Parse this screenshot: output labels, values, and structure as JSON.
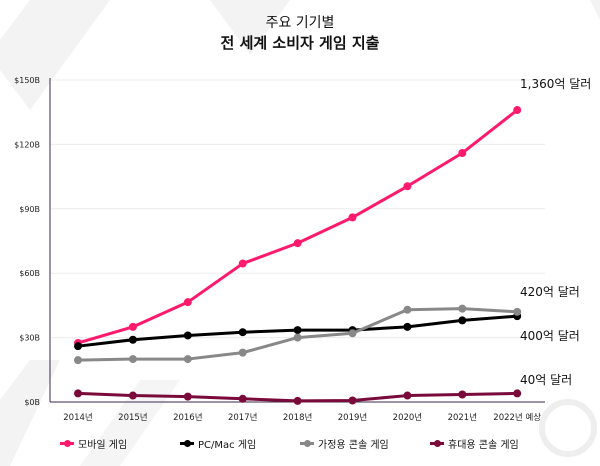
{
  "title_line1": "주요 기기별",
  "title_line2": "전 세계 소비자 게임 지출",
  "chart_data": {
    "type": "line",
    "title": "주요 기기별 전 세계 소비자 게임 지출",
    "categories": [
      "2014년",
      "2015년",
      "2016년",
      "2017년",
      "2018년",
      "2019년",
      "2020년",
      "2021년",
      "2022년 예상"
    ],
    "ylim": [
      0,
      150
    ],
    "yticks": [
      0,
      30,
      60,
      90,
      120,
      150
    ],
    "ytick_labels": [
      "$0B",
      "$30B",
      "$60B",
      "$90B",
      "$120B",
      "$150B"
    ],
    "grid": true,
    "legend_position": "bottom",
    "series": [
      {
        "name": "모바일 게임",
        "color": "#ff1a6e",
        "values": [
          27.5,
          35,
          46.5,
          64.5,
          74,
          86,
          100.5,
          116,
          136
        ]
      },
      {
        "name": "PC/Mac 게임",
        "color": "#000000",
        "values": [
          26,
          29,
          31,
          32.5,
          33.5,
          33.5,
          35,
          38,
          40
        ]
      },
      {
        "name": "가정용 콘솔 게임",
        "color": "#888888",
        "values": [
          19.5,
          20,
          20,
          23,
          30,
          32,
          43,
          43.5,
          42
        ]
      },
      {
        "name": "휴대용 콘솔 게임",
        "color": "#7a0a3a",
        "values": [
          4,
          3,
          2.5,
          1.5,
          0.5,
          0.7,
          3,
          3.5,
          4
        ]
      }
    ],
    "annotations": [
      {
        "text": "1,360억 달러",
        "series": 0
      },
      {
        "text": "420억 달러",
        "series": 2
      },
      {
        "text": "400억 달러",
        "series": 1
      },
      {
        "text": "40억 달러",
        "series": 3
      }
    ]
  }
}
